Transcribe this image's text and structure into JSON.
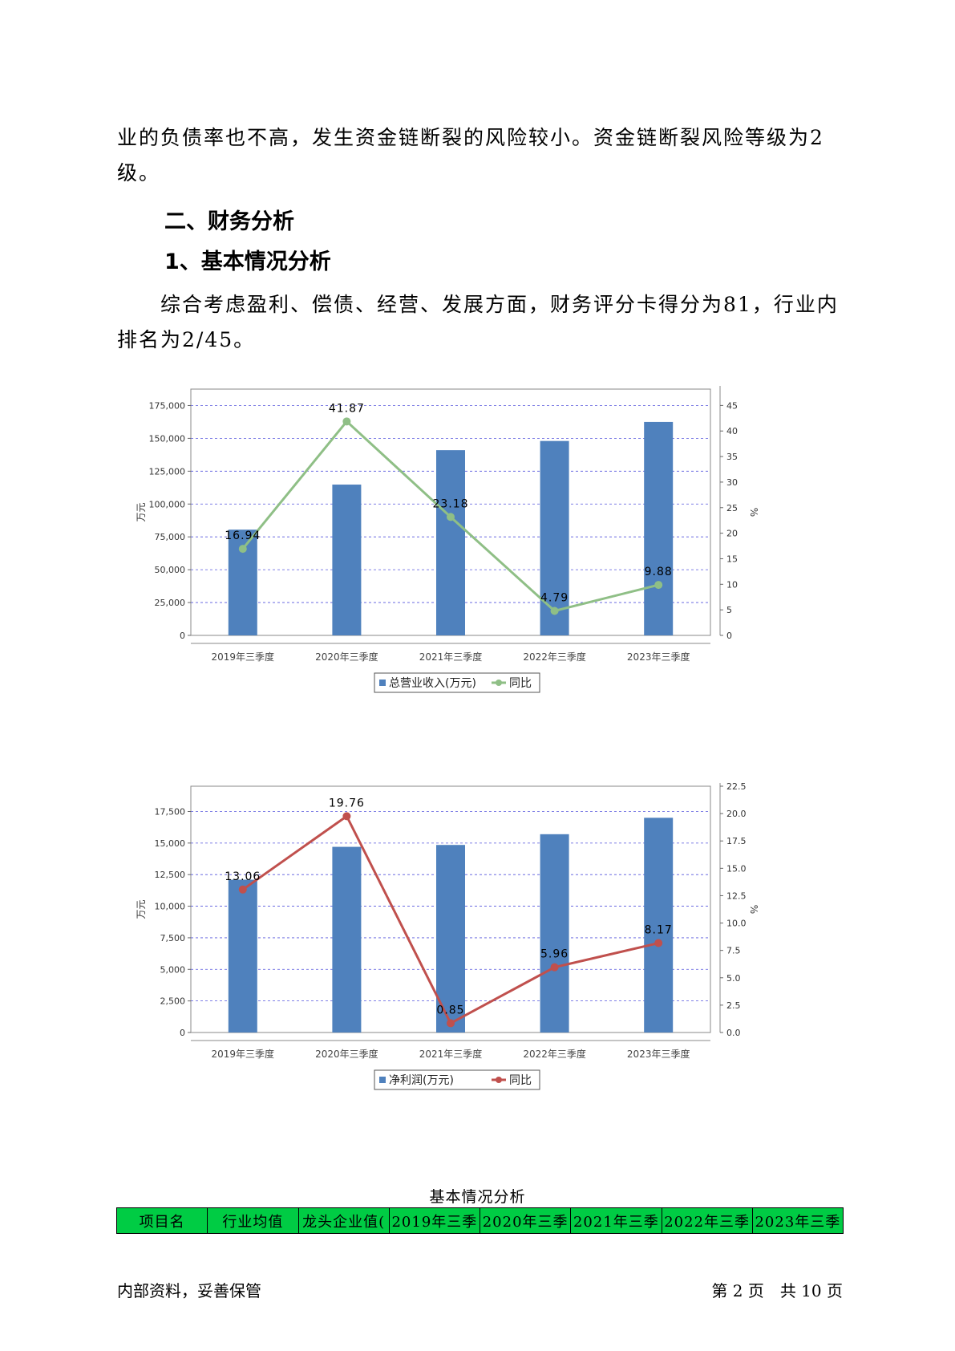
{
  "body": {
    "para1": "业的负债率也不高，发生资金链断裂的风险较小。资金链断裂风险等级为2级。",
    "heading2": "二、财务分析",
    "heading3": "1、基本情况分析",
    "para2": "综合考虑盈利、偿债、经营、发展方面，财务评分卡得分为81，行业内排名为2/45。"
  },
  "chart_data": [
    {
      "type": "bar",
      "title": "总营业收入",
      "categories": [
        "2019年三季度",
        "2020年三季度",
        "2021年三季度",
        "2022年三季度",
        "2023年三季度"
      ],
      "series": [
        {
          "name": "总营业收入(万元)",
          "type": "bar",
          "axis": "left",
          "values": [
            80500,
            114800,
            141000,
            148000,
            162500
          ],
          "color": "#4f81bd"
        },
        {
          "name": "同比",
          "type": "line",
          "axis": "right",
          "values": [
            16.94,
            41.87,
            23.18,
            4.79,
            9.88
          ],
          "labels": [
            "16.94",
            "41.87",
            "23.18",
            "4.79",
            "9.88"
          ],
          "color": "#8fbf86"
        }
      ],
      "ylabel": "万元",
      "y2label": "%",
      "ylim": [
        0,
        187500
      ],
      "yticks": [
        0,
        25000,
        50000,
        75000,
        100000,
        125000,
        150000,
        175000
      ],
      "ytick_labels": [
        "0",
        "25,000",
        "50,000",
        "75,000",
        "100,000",
        "125,000",
        "150,000",
        "175,000"
      ],
      "y2lim": [
        0,
        48.2
      ],
      "y2ticks": [
        0,
        5,
        10,
        15,
        20,
        25,
        30,
        35,
        40,
        45
      ],
      "y2tick_labels": [
        "0",
        "5",
        "10",
        "15",
        "20",
        "25",
        "30",
        "35",
        "40",
        "45"
      ],
      "grid": true,
      "legend": "bottom"
    },
    {
      "type": "bar",
      "title": "净利润",
      "categories": [
        "2019年三季度",
        "2020年三季度",
        "2021年三季度",
        "2022年三季度",
        "2023年三季度"
      ],
      "series": [
        {
          "name": "净利润(万元)",
          "type": "bar",
          "axis": "left",
          "values": [
            12100,
            14700,
            14850,
            15700,
            17000
          ],
          "color": "#4f81bd"
        },
        {
          "name": "同比",
          "type": "line",
          "axis": "right",
          "values": [
            13.06,
            19.76,
            0.85,
            5.96,
            8.17
          ],
          "labels": [
            "13.06",
            "19.76",
            "0.85",
            "5.96",
            "8.17"
          ],
          "color": "#c0504d"
        }
      ],
      "ylabel": "万元",
      "y2label": "%",
      "ylim": [
        0,
        19500
      ],
      "yticks": [
        0,
        2500,
        5000,
        7500,
        10000,
        12500,
        15000,
        17500
      ],
      "ytick_labels": [
        "0",
        "2,500",
        "5,000",
        "7,500",
        "10,000",
        "12,500",
        "15,000",
        "17,500"
      ],
      "y2lim": [
        0,
        22.5
      ],
      "y2ticks": [
        0,
        2.5,
        5,
        7.5,
        10,
        12.5,
        15,
        17.5,
        20,
        22.5
      ],
      "y2tick_labels": [
        "0.0",
        "2.5",
        "5.0",
        "7.5",
        "10.0",
        "12.5",
        "15.0",
        "17.5",
        "20.0",
        "22.5"
      ],
      "grid": true,
      "legend": "bottom"
    }
  ],
  "table": {
    "title": "基本情况分析",
    "headers": [
      "项目名",
      "行业均值",
      "龙头企业值(",
      "2019年三季",
      "2020年三季",
      "2021年三季",
      "2022年三季",
      "2023年三季"
    ],
    "header_color": "#00cc44"
  },
  "footer": {
    "left": "内部资料，妥善保管",
    "right": "第 2 页　共 10 页"
  }
}
